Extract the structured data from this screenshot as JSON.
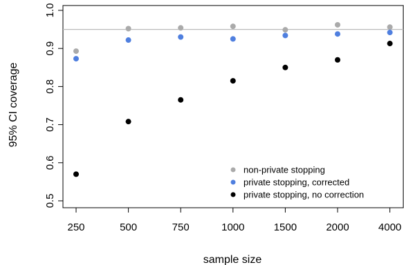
{
  "chart_data": {
    "type": "scatter",
    "title": "",
    "xlabel": "sample size",
    "ylabel": "95% CI coverage",
    "categories": [
      "250",
      "500",
      "750",
      "1000",
      "1500",
      "2000",
      "4000"
    ],
    "ylim": [
      0.5,
      1.0
    ],
    "yticks": [
      "0.5",
      "0.6",
      "0.7",
      "0.8",
      "0.9",
      "1.0"
    ],
    "reference_line": 0.95,
    "reference_line_color": "#bbbbbb",
    "grid": false,
    "legend_position": "bottom-right",
    "series": [
      {
        "name": "non-private stopping",
        "color": "#aaaaaa",
        "values": [
          0.893,
          0.952,
          0.954,
          0.958,
          0.949,
          0.962,
          0.956
        ]
      },
      {
        "name": "private stopping, corrected",
        "color": "#4f7fdf",
        "values": [
          0.873,
          0.922,
          0.93,
          0.925,
          0.934,
          0.938,
          0.942
        ]
      },
      {
        "name": "private stopping, no correction",
        "color": "#000000",
        "values": [
          0.57,
          0.708,
          0.765,
          0.815,
          0.85,
          0.87,
          0.913
        ]
      }
    ]
  }
}
